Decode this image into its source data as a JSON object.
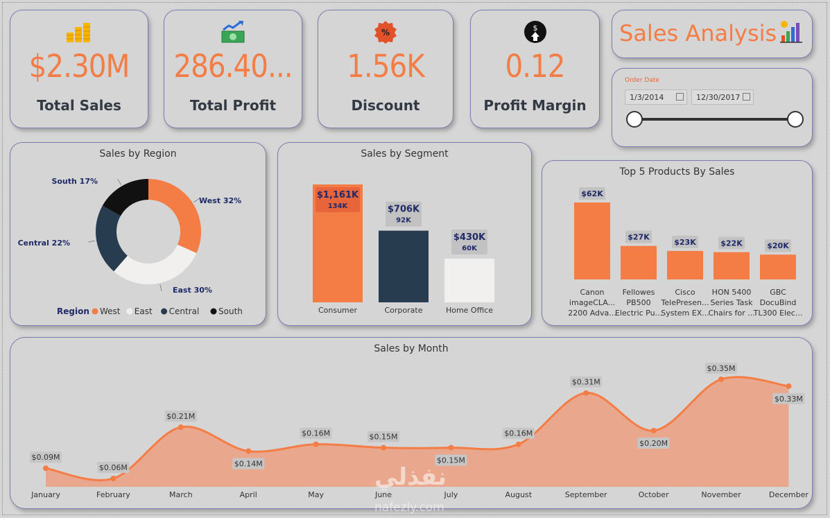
{
  "kpis": [
    {
      "value": "$2.30M",
      "label": "Total Sales",
      "icon": "coins-icon"
    },
    {
      "value": "286.40...",
      "label": "Total Profit",
      "icon": "money-growth-icon"
    },
    {
      "value": "1.56K",
      "label": "Discount",
      "icon": "discount-badge-icon"
    },
    {
      "value": "0.12",
      "label": "Profit Margin",
      "icon": "dollar-up-icon"
    }
  ],
  "header": {
    "title": "Sales Analysis"
  },
  "slicer": {
    "label": "Order Date",
    "start": "1/3/2014",
    "end": "12/30/2017",
    "start_fraction": 0,
    "end_fraction": 1
  },
  "colors": {
    "orange": "#f47c45",
    "navy": "#283c4f",
    "white": "#f1f0ee",
    "black": "#111111"
  },
  "region": {
    "title": "Sales by Region",
    "legend_title": "Region",
    "chart_data": {
      "type": "pie",
      "slices": [
        {
          "name": "West",
          "value": 32,
          "label": "West 32%",
          "color": "#f47c45"
        },
        {
          "name": "East",
          "value": 30,
          "label": "East 30%",
          "color": "#f1f0ee"
        },
        {
          "name": "Central",
          "value": 22,
          "label": "Central 22%",
          "color": "#283c4f"
        },
        {
          "name": "South",
          "value": 17,
          "label": "South 17%",
          "color": "#111111"
        }
      ]
    }
  },
  "segment": {
    "title": "Sales by Segment",
    "chart_data": {
      "type": "bar",
      "categories": [
        "Consumer",
        "Corporate",
        "Home Office"
      ],
      "values": [
        1161,
        706,
        430
      ],
      "value_labels": [
        "$1,161K",
        "$706K",
        "$430K"
      ],
      "sub_labels": [
        "134K",
        "92K",
        "60K"
      ],
      "colors": [
        "#f47c45",
        "#283c4f",
        "#f1f0ee"
      ],
      "ylim": [
        0,
        1161
      ]
    }
  },
  "products": {
    "title": "Top 5 Products By Sales",
    "chart_data": {
      "type": "bar",
      "categories": [
        [
          "Canon",
          "imageCLA...",
          "2200 Adva..."
        ],
        [
          "Fellowes",
          "PB500",
          "Electric Pu..."
        ],
        [
          "Cisco",
          "TelePresen...",
          "System EX..."
        ],
        [
          "HON 5400",
          "Series Task",
          "Chairs for ..."
        ],
        [
          "GBC",
          "DocuBind",
          "TL300 Elec..."
        ]
      ],
      "values": [
        62,
        27,
        23,
        22,
        20
      ],
      "value_labels": [
        "$62K",
        "$27K",
        "$23K",
        "$22K",
        "$20K"
      ],
      "ylim": [
        0,
        62
      ]
    }
  },
  "monthly": {
    "title": "Sales by Month",
    "chart_data": {
      "type": "area",
      "categories": [
        "January",
        "February",
        "March",
        "April",
        "May",
        "June",
        "July",
        "August",
        "September",
        "October",
        "November",
        "December"
      ],
      "values": [
        0.09,
        0.06,
        0.21,
        0.14,
        0.16,
        0.15,
        0.15,
        0.16,
        0.31,
        0.2,
        0.35,
        0.33
      ],
      "value_labels": [
        "$0.09M",
        "$0.06M",
        "$0.21M",
        "$0.14M",
        "$0.16M",
        "$0.15M",
        "$0.15M",
        "$0.16M",
        "$0.31M",
        "$0.20M",
        "$0.35M",
        "$0.33M"
      ],
      "label_position": [
        "above",
        "above",
        "above",
        "below",
        "above",
        "above",
        "below",
        "above",
        "above",
        "below",
        "above",
        "below"
      ]
    }
  },
  "watermark": {
    "text": "نفذلي",
    "sub": "nafezly.com"
  }
}
